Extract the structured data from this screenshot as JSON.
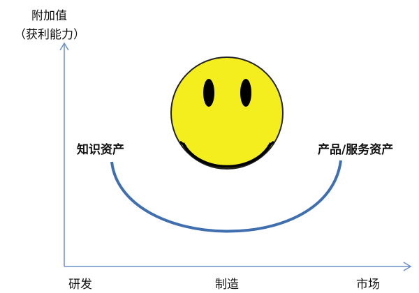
{
  "y_axis": {
    "label_line1": "附加值",
    "label_line2": "（获利能力）"
  },
  "x_axis": {
    "ticks": [
      "研发",
      "制造",
      "市场"
    ]
  },
  "curve_labels": {
    "left": "知识资产",
    "right": "产品/服务资产"
  },
  "colors": {
    "axis": "#6b8fc9",
    "curve": "#3f6fae",
    "face": "#f5ee1e",
    "features": "#000000"
  }
}
